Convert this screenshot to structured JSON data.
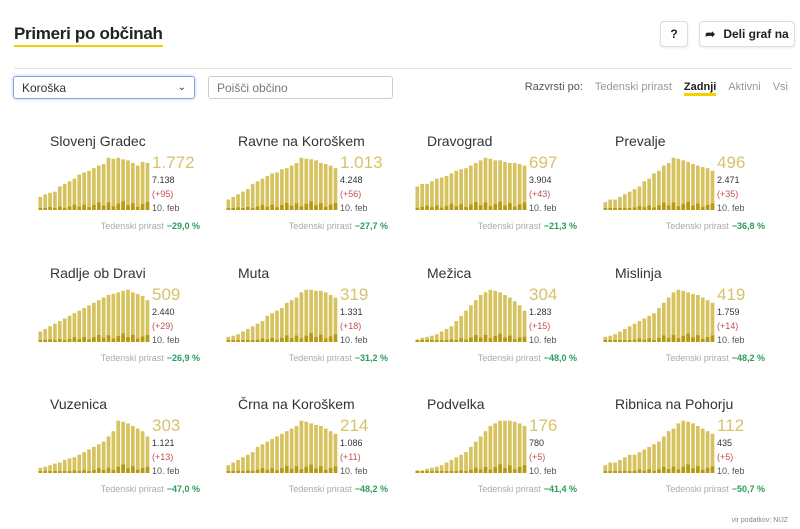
{
  "header": {
    "title": "Primeri po občinah",
    "help_label": "?",
    "share_label": "Deli graf na"
  },
  "filters": {
    "region": "Koroška",
    "search_placeholder": "Poišči občino",
    "sort_label": "Razvrsti po:",
    "sort_options": [
      "Tedenski prirast",
      "Zadnji",
      "Aktivni",
      "Vsi"
    ],
    "sort_active": 1
  },
  "weekly_label": "Tedenski prirast",
  "colors": {
    "bar": "#d6c25e",
    "bar_dark": "#b59a12",
    "accent": "#f5d000",
    "negative": "#2a9d5c"
  },
  "cards": [
    {
      "name": "Slovenj Gradec",
      "active": "1.772",
      "total": "7.138",
      "increase": "(+95)",
      "date": "10. feb",
      "weekly": "−29,0 %",
      "bars": [
        0.25,
        0.3,
        0.33,
        0.35,
        0.45,
        0.5,
        0.55,
        0.6,
        0.68,
        0.72,
        0.75,
        0.8,
        0.85,
        0.88,
        1,
        0.98,
        1,
        0.97,
        0.95,
        0.9,
        0.85,
        0.92,
        0.9
      ]
    },
    {
      "name": "Ravne na Koroškem",
      "active": "1.013",
      "total": "4.248",
      "increase": "(+56)",
      "date": "10. feb",
      "weekly": "−27,7 %",
      "bars": [
        0.2,
        0.25,
        0.3,
        0.35,
        0.4,
        0.5,
        0.55,
        0.6,
        0.65,
        0.7,
        0.72,
        0.78,
        0.8,
        0.85,
        0.9,
        1,
        0.98,
        0.97,
        0.95,
        0.9,
        0.88,
        0.85,
        0.8
      ]
    },
    {
      "name": "Dravograd",
      "active": "697",
      "total": "3.904",
      "increase": "(+43)",
      "date": "10. feb",
      "weekly": "−21,3 %",
      "bars": [
        0.45,
        0.5,
        0.5,
        0.55,
        0.6,
        0.62,
        0.65,
        0.7,
        0.75,
        0.78,
        0.8,
        0.85,
        0.9,
        0.95,
        1,
        0.98,
        0.95,
        0.95,
        0.92,
        0.9,
        0.9,
        0.88,
        0.85
      ]
    },
    {
      "name": "Prevalje",
      "active": "496",
      "total": "2.471",
      "increase": "(+35)",
      "date": "10. feb",
      "weekly": "−36,8 %",
      "bars": [
        0.15,
        0.2,
        0.2,
        0.25,
        0.3,
        0.35,
        0.4,
        0.45,
        0.55,
        0.6,
        0.7,
        0.75,
        0.85,
        0.9,
        1,
        0.98,
        0.95,
        0.92,
        0.88,
        0.85,
        0.82,
        0.8,
        0.75
      ]
    },
    {
      "name": "Radlje ob Dravi",
      "active": "509",
      "total": "2.440",
      "increase": "(+29)",
      "date": "10. feb",
      "weekly": "−26,9 %",
      "bars": [
        0.2,
        0.25,
        0.3,
        0.35,
        0.4,
        0.45,
        0.5,
        0.55,
        0.6,
        0.65,
        0.7,
        0.75,
        0.8,
        0.85,
        0.9,
        0.92,
        0.95,
        0.98,
        1,
        0.95,
        0.92,
        0.88,
        0.8
      ]
    },
    {
      "name": "Muta",
      "active": "319",
      "total": "1.331",
      "increase": "(+18)",
      "date": "10. feb",
      "weekly": "−31,2 %",
      "bars": [
        0.1,
        0.12,
        0.15,
        0.2,
        0.25,
        0.3,
        0.35,
        0.4,
        0.5,
        0.55,
        0.6,
        0.65,
        0.75,
        0.8,
        0.85,
        0.95,
        1,
        1,
        0.98,
        0.98,
        0.95,
        0.9,
        0.85
      ]
    },
    {
      "name": "Mežica",
      "active": "304",
      "total": "1.283",
      "increase": "(+15)",
      "date": "10. feb",
      "weekly": "−48,0 %",
      "bars": [
        0.05,
        0.08,
        0.1,
        0.12,
        0.15,
        0.2,
        0.25,
        0.3,
        0.4,
        0.5,
        0.6,
        0.7,
        0.8,
        0.9,
        0.95,
        1,
        0.98,
        0.95,
        0.9,
        0.85,
        0.78,
        0.7,
        0.6
      ]
    },
    {
      "name": "Mislinja",
      "active": "419",
      "total": "1.759",
      "increase": "(+14)",
      "date": "10. feb",
      "weekly": "−48,2 %",
      "bars": [
        0.1,
        0.12,
        0.15,
        0.2,
        0.25,
        0.3,
        0.35,
        0.4,
        0.45,
        0.5,
        0.55,
        0.65,
        0.75,
        0.85,
        0.95,
        1,
        0.98,
        0.95,
        0.92,
        0.9,
        0.85,
        0.8,
        0.75
      ]
    },
    {
      "name": "Vuzenica",
      "active": "303",
      "total": "1.121",
      "increase": "(+13)",
      "date": "10. feb",
      "weekly": "−47,0 %",
      "bars": [
        0.1,
        0.12,
        0.15,
        0.18,
        0.2,
        0.25,
        0.28,
        0.3,
        0.35,
        0.4,
        0.45,
        0.5,
        0.55,
        0.6,
        0.7,
        0.8,
        1,
        0.98,
        0.95,
        0.9,
        0.85,
        0.8,
        0.7
      ]
    },
    {
      "name": "Črna na Koroškem",
      "active": "214",
      "total": "1.086",
      "increase": "(+11)",
      "date": "10. feb",
      "weekly": "−48,2 %",
      "bars": [
        0.15,
        0.2,
        0.25,
        0.3,
        0.35,
        0.4,
        0.5,
        0.55,
        0.6,
        0.65,
        0.7,
        0.75,
        0.8,
        0.85,
        0.9,
        1,
        0.98,
        0.95,
        0.92,
        0.9,
        0.85,
        0.8,
        0.75
      ]
    },
    {
      "name": "Podvelka",
      "active": "176",
      "total": "780",
      "increase": "(+5)",
      "date": "10. feb",
      "weekly": "−41,4 %",
      "bars": [
        0.05,
        0.05,
        0.08,
        0.1,
        0.12,
        0.15,
        0.2,
        0.25,
        0.3,
        0.35,
        0.4,
        0.5,
        0.6,
        0.7,
        0.8,
        0.9,
        0.95,
        1,
        1,
        1,
        0.98,
        0.95,
        0.9
      ]
    },
    {
      "name": "Ribnica na Pohorju",
      "active": "112",
      "total": "435",
      "increase": "(+5)",
      "date": "10. feb",
      "weekly": "−50,7 %",
      "bars": [
        0.15,
        0.2,
        0.2,
        0.25,
        0.3,
        0.35,
        0.35,
        0.4,
        0.45,
        0.5,
        0.55,
        0.6,
        0.7,
        0.8,
        0.85,
        0.95,
        1,
        0.98,
        0.95,
        0.9,
        0.85,
        0.8,
        0.75
      ]
    }
  ],
  "footer": "vir podatkov: NIJZ"
}
